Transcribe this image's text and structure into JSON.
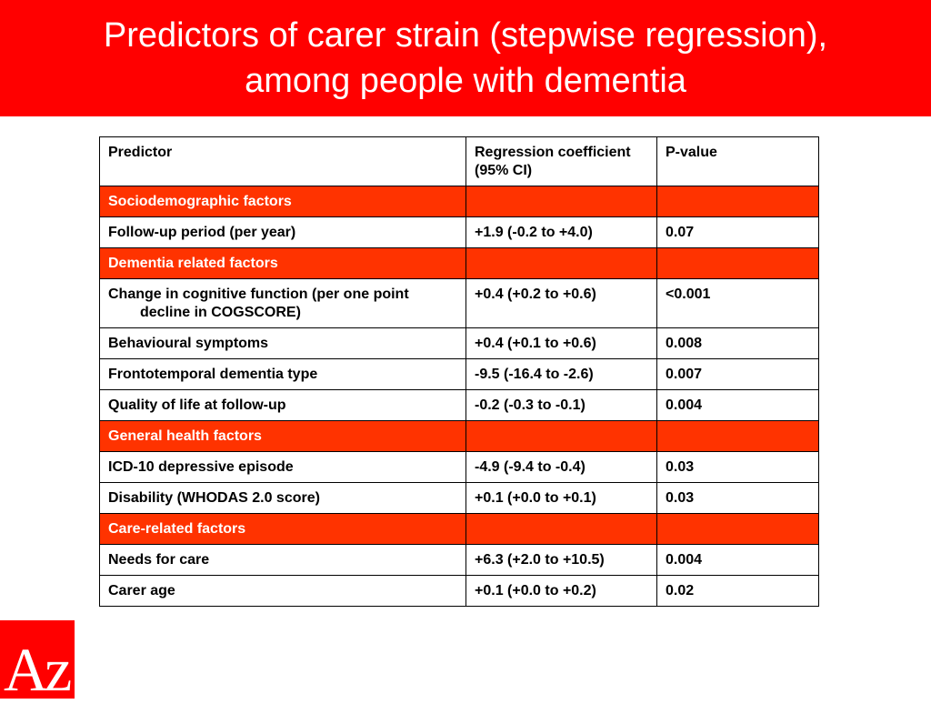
{
  "slide": {
    "title_line1": "Predictors of carer strain (stepwise regression),",
    "title_line2": "among people with dementia"
  },
  "table": {
    "headers": [
      "Predictor",
      "Regression coefficient (95% CI)",
      "P-value"
    ],
    "rows": [
      {
        "type": "section",
        "predictor": "Sociodemographic factors",
        "coefficient": "",
        "p_value": ""
      },
      {
        "type": "data",
        "predictor": "Follow-up period (per year)",
        "coefficient": "+1.9 (-0.2 to +4.0)",
        "p_value": "0.07"
      },
      {
        "type": "section",
        "predictor": "Dementia related factors",
        "coefficient": "",
        "p_value": ""
      },
      {
        "type": "data",
        "predictor": "Change in cognitive function (per one point decline in COGSCORE)",
        "coefficient": "+0.4 (+0.2 to +0.6)",
        "p_value": "<0.001"
      },
      {
        "type": "data",
        "predictor": "Behavioural symptoms",
        "coefficient": "+0.4 (+0.1 to +0.6)",
        "p_value": "0.008"
      },
      {
        "type": "data",
        "predictor": "Frontotemporal dementia type",
        "coefficient": "-9.5 (-16.4 to -2.6)",
        "p_value": "0.007"
      },
      {
        "type": "data",
        "predictor": "Quality of life at follow-up",
        "coefficient": "-0.2 (-0.3 to -0.1)",
        "p_value": "0.004"
      },
      {
        "type": "section",
        "predictor": "General health factors",
        "coefficient": "",
        "p_value": ""
      },
      {
        "type": "data",
        "predictor": "ICD-10 depressive episode",
        "coefficient": "-4.9 (-9.4 to -0.4)",
        "p_value": "0.03"
      },
      {
        "type": "data",
        "predictor": "Disability (WHODAS 2.0 score)",
        "coefficient": "+0.1 (+0.0 to +0.1)",
        "p_value": "0.03"
      },
      {
        "type": "section",
        "predictor": "Care-related factors",
        "coefficient": "",
        "p_value": ""
      },
      {
        "type": "data",
        "predictor": "Needs for care",
        "coefficient": "+6.3 (+2.0 to +10.5)",
        "p_value": "0.004"
      },
      {
        "type": "data",
        "predictor": "Carer age",
        "coefficient": "+0.1 (+0.0 to +0.2)",
        "p_value": "0.02"
      }
    ]
  },
  "logo": {
    "text": "Az",
    "background": "#ff0000"
  },
  "colors": {
    "title_bar": "#ff0000",
    "section_row": "#ff3300",
    "text_light": "#ffffff"
  }
}
